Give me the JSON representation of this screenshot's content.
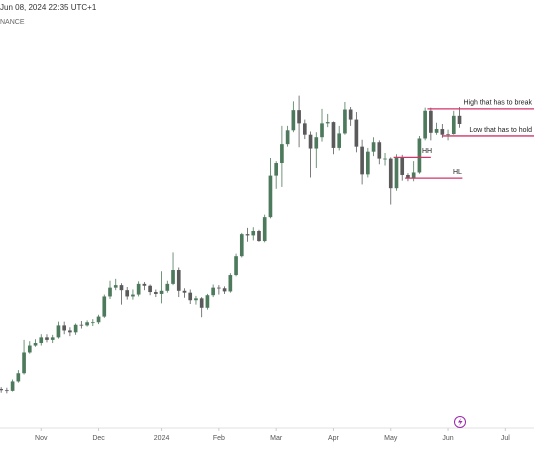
{
  "chart_data": {
    "type": "candlestick",
    "title": "Jun 08, 2024 22:35 UTC+1",
    "subtitle": "NANCE",
    "up_color": "#4d7a5c",
    "down_color": "#5a5a5a",
    "xlim": [
      -0.2,
      93
    ],
    "xticks": [
      {
        "value": 7,
        "label": "Nov"
      },
      {
        "value": 17,
        "label": "Dec"
      },
      {
        "value": 28,
        "label": "2024"
      },
      {
        "value": 38,
        "label": "Feb"
      },
      {
        "value": 48,
        "label": "Mar"
      },
      {
        "value": 58,
        "label": "Apr"
      },
      {
        "value": 68,
        "label": "May"
      },
      {
        "value": 78,
        "label": "Jun"
      },
      {
        "value": 88,
        "label": "Jul"
      }
    ],
    "ylim": [
      21000,
      89000
    ],
    "grid": false,
    "open": [
      27200,
      27000,
      26900,
      28400,
      29700,
      33000,
      34100,
      34500,
      35400,
      35000,
      35400,
      37300,
      36500,
      36200,
      37400,
      37300,
      37800,
      37800,
      38700,
      41900,
      43300,
      43700,
      42900,
      41900,
      42200,
      43900,
      43600,
      42600,
      42300,
      42800,
      43900,
      46100,
      42800,
      42500,
      41300,
      41600,
      40100,
      42100,
      43300,
      43200,
      42700,
      45300,
      48300,
      51800,
      51600,
      52300,
      50700,
      54500,
      61100,
      63100,
      66100,
      68300,
      71500,
      69400,
      67600,
      65400,
      67200,
      69400,
      69600,
      65500,
      67800,
      71600,
      70000,
      65700,
      61300,
      64900,
      66400,
      63800,
      63800,
      59100,
      63900,
      61200,
      60800,
      61600,
      67000,
      71400,
      67900,
      68500,
      67600,
      67700,
      70600
    ],
    "high": [
      27500,
      27400,
      28700,
      30200,
      35000,
      34800,
      35100,
      35900,
      35900,
      35800,
      37900,
      37900,
      37000,
      37600,
      38000,
      38100,
      38300,
      39000,
      42200,
      44400,
      44700,
      44000,
      43400,
      43000,
      44300,
      44200,
      43800,
      43000,
      45900,
      44400,
      48900,
      46500,
      43200,
      43000,
      42000,
      41800,
      42300,
      43800,
      43700,
      43500,
      45600,
      48700,
      52000,
      52800,
      52900,
      52500,
      54900,
      63900,
      63400,
      69000,
      69000,
      72900,
      73800,
      70000,
      68100,
      68000,
      71700,
      70900,
      69700,
      69000,
      72800,
      72000,
      71200,
      66800,
      65500,
      67200,
      66700,
      64700,
      64000,
      64500,
      64400,
      61500,
      63400,
      67400,
      71900,
      71900,
      69500,
      69300,
      68400,
      71400,
      72000
    ],
    "low": [
      26600,
      26500,
      26800,
      28200,
      29500,
      32800,
      33900,
      34100,
      34600,
      34500,
      35200,
      35900,
      35600,
      35800,
      36800,
      37100,
      37200,
      37500,
      38500,
      41500,
      42900,
      40600,
      41400,
      41400,
      41900,
      42900,
      42100,
      41800,
      40800,
      42500,
      43700,
      41800,
      41700,
      40700,
      40600,
      38600,
      39800,
      41800,
      42200,
      42300,
      42500,
      45100,
      48100,
      50600,
      50800,
      50600,
      50500,
      54300,
      59000,
      59300,
      65700,
      68000,
      65600,
      66900,
      60800,
      62300,
      66500,
      68800,
      64500,
      65100,
      67600,
      69000,
      64800,
      59700,
      60800,
      64200,
      62900,
      62700,
      56500,
      58700,
      60300,
      60200,
      60200,
      61400,
      66700,
      66700,
      67600,
      67100,
      66700,
      67600,
      68700
    ],
    "close": [
      27000,
      26900,
      28400,
      29700,
      33000,
      34100,
      34500,
      35400,
      35000,
      35400,
      37300,
      36500,
      36200,
      37400,
      37300,
      37800,
      37800,
      38700,
      41900,
      43300,
      43700,
      42900,
      41900,
      42200,
      43900,
      43600,
      42600,
      42300,
      42800,
      43900,
      46100,
      42800,
      42500,
      41300,
      41600,
      40100,
      42100,
      43300,
      43200,
      42700,
      45300,
      48300,
      51800,
      51600,
      52300,
      50700,
      54500,
      61100,
      63100,
      66100,
      68300,
      71500,
      69400,
      67600,
      65400,
      67200,
      69400,
      69600,
      65500,
      67800,
      71600,
      70000,
      65700,
      61300,
      64900,
      66400,
      63800,
      63800,
      59100,
      63900,
      61200,
      60800,
      61600,
      67000,
      71400,
      67900,
      68500,
      67600,
      67700,
      70600,
      69300
    ],
    "levels_color": "#d1346c",
    "levels": [
      {
        "label": "High that has to break",
        "value": 71700
      },
      {
        "label": "Low that has to hold",
        "value": 67400
      },
      {
        "label": "HH",
        "value": 64000
      },
      {
        "label": "HL",
        "value": 60700
      }
    ]
  }
}
